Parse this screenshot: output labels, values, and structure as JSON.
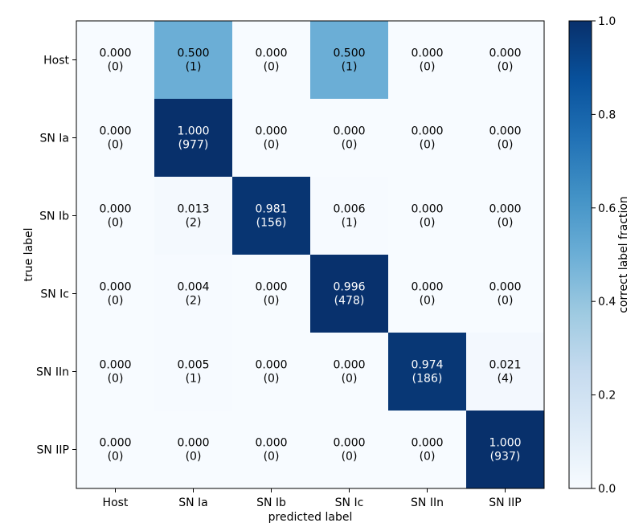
{
  "chart_data": {
    "type": "heatmap",
    "title": "",
    "xlabel": "predicted label",
    "ylabel": "true label",
    "x_categories": [
      "Host",
      "SN Ia",
      "SN Ib",
      "SN Ic",
      "SN IIn",
      "SN IIP"
    ],
    "y_categories": [
      "Host",
      "SN Ia",
      "SN Ib",
      "SN Ic",
      "SN IIn",
      "SN IIP"
    ],
    "values": [
      [
        0.0,
        0.5,
        0.0,
        0.5,
        0.0,
        0.0
      ],
      [
        0.0,
        1.0,
        0.0,
        0.0,
        0.0,
        0.0
      ],
      [
        0.0,
        0.013,
        0.981,
        0.006,
        0.0,
        0.0
      ],
      [
        0.0,
        0.004,
        0.0,
        0.996,
        0.0,
        0.0
      ],
      [
        0.0,
        0.005,
        0.0,
        0.0,
        0.974,
        0.021
      ],
      [
        0.0,
        0.0,
        0.0,
        0.0,
        0.0,
        1.0
      ]
    ],
    "counts": [
      [
        0,
        1,
        0,
        1,
        0,
        0
      ],
      [
        0,
        977,
        0,
        0,
        0,
        0
      ],
      [
        0,
        2,
        156,
        1,
        0,
        0
      ],
      [
        0,
        2,
        0,
        478,
        0,
        0
      ],
      [
        0,
        1,
        0,
        0,
        186,
        4
      ],
      [
        0,
        0,
        0,
        0,
        0,
        937
      ]
    ],
    "colorbar": {
      "label": "correct label fraction",
      "range": [
        0.0,
        1.0
      ],
      "ticks": [
        "0.0",
        "0.2",
        "0.4",
        "0.6",
        "0.8",
        "1.0"
      ],
      "colormap": "Blues"
    }
  }
}
